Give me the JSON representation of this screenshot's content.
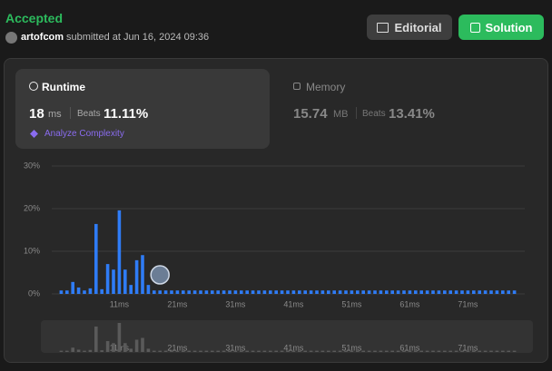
{
  "header": {
    "status": "Accepted",
    "user": "artofcom",
    "submitted": "submitted at Jun 16, 2024 09:36",
    "buttons": [
      "Editorial",
      "Solution"
    ]
  },
  "runtime": {
    "title": "Runtime",
    "value": "18",
    "unit": "ms",
    "beats_label": "Beats",
    "beats": "11.11%",
    "analyze": "Analyze Complexity"
  },
  "memory": {
    "title": "Memory",
    "value": "15.74",
    "unit": "MB",
    "beats_label": "Beats",
    "beats": "13.41%"
  },
  "chart_data": {
    "type": "bar",
    "color": "#2f7cf6",
    "grid": true,
    "x": [
      1,
      2,
      3,
      4,
      5,
      6,
      7,
      8,
      9,
      10,
      11,
      12,
      13,
      14,
      15,
      16,
      17,
      18,
      19,
      20,
      21,
      22,
      23,
      24,
      25,
      26,
      27,
      28,
      29,
      30,
      31,
      32,
      33,
      34,
      35,
      36,
      37,
      38,
      39,
      40,
      41,
      42,
      43,
      44,
      45,
      46,
      47,
      48,
      49,
      50,
      51,
      52,
      53,
      54,
      55,
      56,
      57,
      58,
      59,
      60,
      61,
      62,
      63,
      64,
      65,
      66,
      67,
      68,
      69,
      70,
      71,
      72,
      73,
      74,
      75,
      76,
      77,
      78,
      79
    ],
    "values": [
      0.8,
      0.8,
      2.8,
      1.5,
      0.8,
      1.3,
      16.4,
      1.1,
      7.0,
      5.7,
      19.6,
      5.7,
      2.1,
      7.9,
      9.1,
      2.1,
      0.8,
      0.8,
      0.8,
      0.8,
      0.8,
      0.8,
      0.8,
      0.8,
      0.8,
      0.8,
      0.8,
      0.8,
      0.8,
      0.8,
      0.8,
      0.8,
      0.8,
      0.8,
      0.8,
      0.8,
      0.8,
      0.8,
      0.8,
      0.8,
      0.8,
      0.8,
      0.8,
      0.8,
      0.8,
      0.8,
      0.8,
      0.8,
      0.8,
      0.8,
      0.8,
      0.8,
      0.8,
      0.8,
      0.8,
      0.8,
      0.8,
      0.8,
      0.8,
      0.8,
      0.8,
      0.8,
      0.8,
      0.8,
      0.8,
      0.8,
      0.8,
      0.8,
      0.8,
      0.8,
      0.8,
      0.8,
      0.8,
      0.8,
      0.8,
      0.8,
      0.8,
      0.8,
      0.8
    ],
    "xlim": [
      0,
      80
    ],
    "xticks": [
      {
        "value": 11,
        "label": "11ms"
      },
      {
        "value": 21,
        "label": "21ms"
      },
      {
        "value": 31,
        "label": "31ms"
      },
      {
        "value": 41,
        "label": "41ms"
      },
      {
        "value": 51,
        "label": "51ms"
      },
      {
        "value": 61,
        "label": "61ms"
      },
      {
        "value": 71,
        "label": "71ms"
      }
    ],
    "ylim": [
      0,
      30
    ],
    "yticks": [
      {
        "value": 0,
        "label": "0%"
      },
      {
        "value": 10,
        "label": "10%"
      },
      {
        "value": 20,
        "label": "20%"
      },
      {
        "value": 30,
        "label": "30%"
      }
    ]
  }
}
